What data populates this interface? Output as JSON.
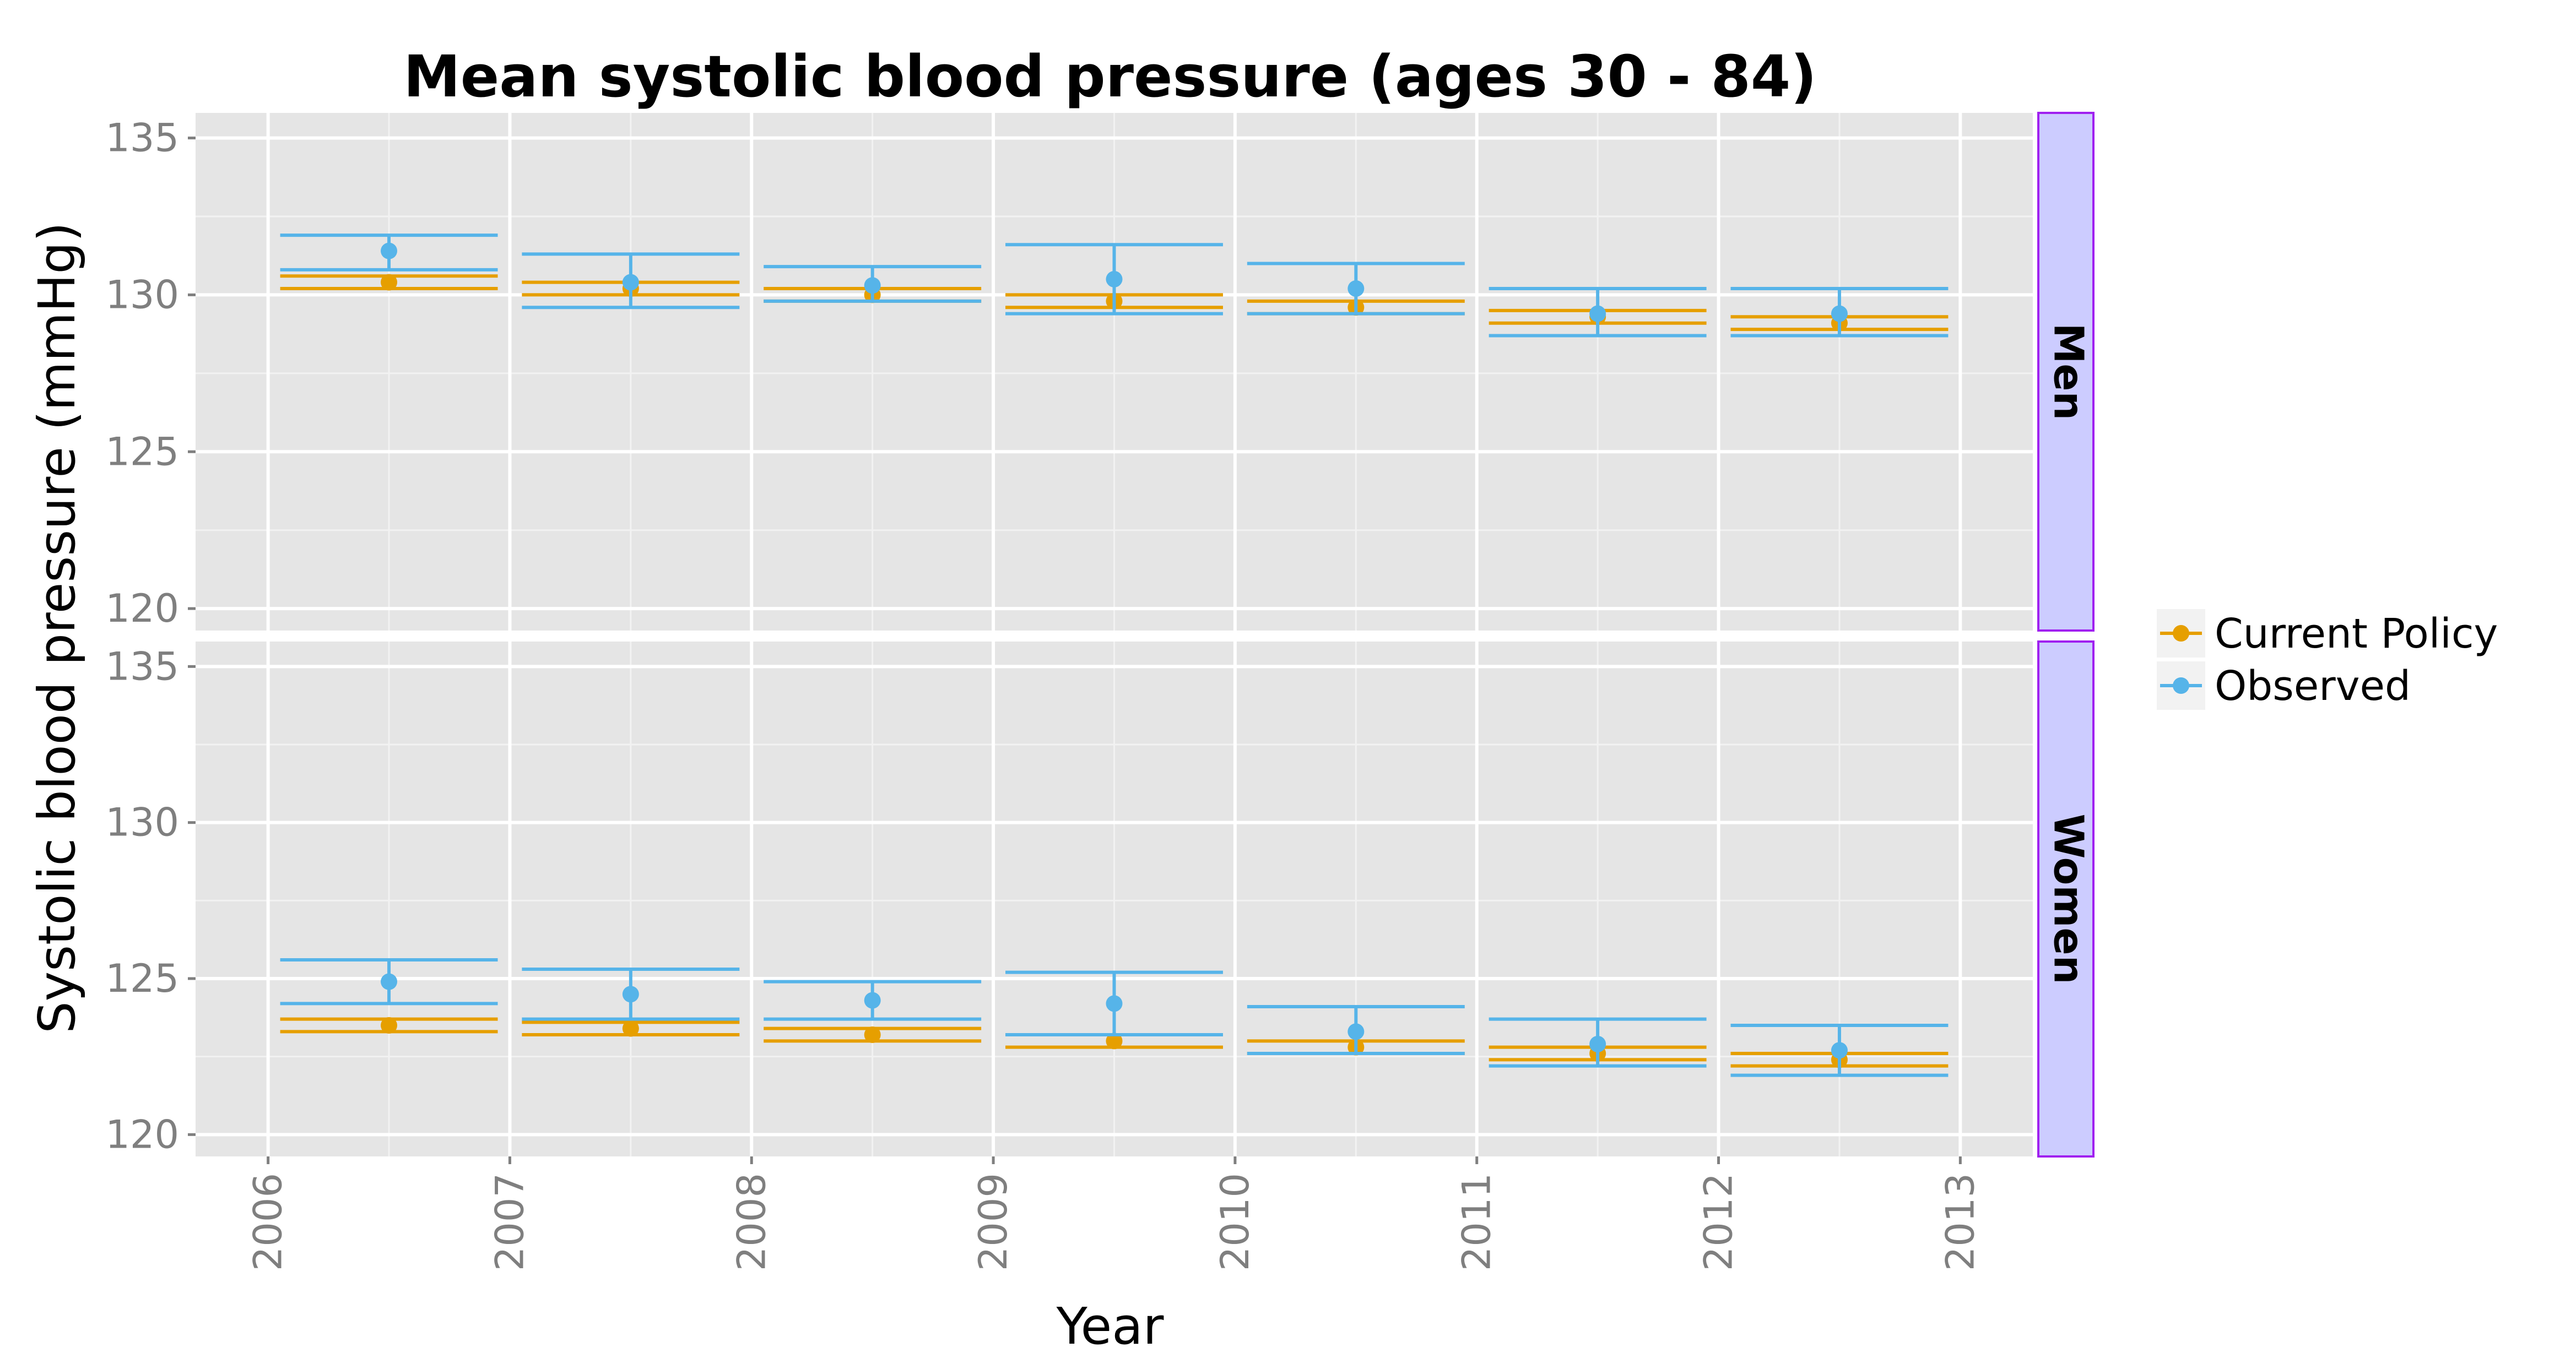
{
  "chart_data": {
    "type": "line",
    "title": "Mean systolic blood pressure (ages 30 - 84)",
    "xlabel": "Year",
    "ylabel": "Systolic blood pressure (mmHg)",
    "x_ticks": [
      "2006",
      "2007",
      "2008",
      "2009",
      "2010",
      "2011",
      "2012",
      "2013"
    ],
    "y_ticks": [
      "120",
      "125",
      "130",
      "135"
    ],
    "xlim": [
      2005.7,
      2013.3
    ],
    "ylim": [
      119.3,
      135.8
    ],
    "grid": true,
    "legend_position": "right",
    "colors": {
      "Current Policy": "#E69F00",
      "Observed": "#56B4E9",
      "panel": "#E5E5E5",
      "strip": "#CCCCFF",
      "strip_border": "#A020F0",
      "grid": "#FFFFFF"
    },
    "series_names": [
      "Current Policy",
      "Observed"
    ],
    "facets": [
      {
        "label": "Men",
        "x": [
          2006.5,
          2007.5,
          2008.5,
          2009.5,
          2010.5,
          2011.5,
          2012.5
        ],
        "series": [
          {
            "name": "Current Policy",
            "values": [
              130.4,
              130.2,
              130.0,
              129.8,
              129.6,
              129.3,
              129.1
            ],
            "lower": [
              130.2,
              130.0,
              129.8,
              129.6,
              129.4,
              129.1,
              128.9
            ],
            "upper": [
              130.6,
              130.4,
              130.2,
              130.0,
              129.8,
              129.5,
              129.3
            ]
          },
          {
            "name": "Observed",
            "values": [
              131.4,
              130.4,
              130.3,
              130.5,
              130.2,
              129.4,
              129.4
            ],
            "lower": [
              130.8,
              129.6,
              129.8,
              129.4,
              129.4,
              128.7,
              128.7
            ],
            "upper": [
              131.9,
              131.3,
              130.9,
              131.6,
              131.0,
              130.2,
              130.2
            ]
          }
        ]
      },
      {
        "label": "Women",
        "x": [
          2006.5,
          2007.5,
          2008.5,
          2009.5,
          2010.5,
          2011.5,
          2012.5
        ],
        "series": [
          {
            "name": "Current Policy",
            "values": [
              123.5,
              123.4,
              123.2,
              123.0,
              122.8,
              122.6,
              122.4
            ],
            "lower": [
              123.3,
              123.2,
              123.0,
              122.8,
              122.6,
              122.4,
              122.2
            ],
            "upper": [
              123.7,
              123.6,
              123.4,
              123.2,
              123.0,
              122.8,
              122.6
            ]
          },
          {
            "name": "Observed",
            "values": [
              124.9,
              124.5,
              124.3,
              124.2,
              123.3,
              122.9,
              122.7
            ],
            "lower": [
              124.2,
              123.7,
              123.7,
              123.2,
              122.6,
              122.2,
              121.9
            ],
            "upper": [
              125.6,
              125.3,
              124.9,
              125.2,
              124.1,
              123.7,
              123.5
            ]
          }
        ]
      }
    ]
  }
}
